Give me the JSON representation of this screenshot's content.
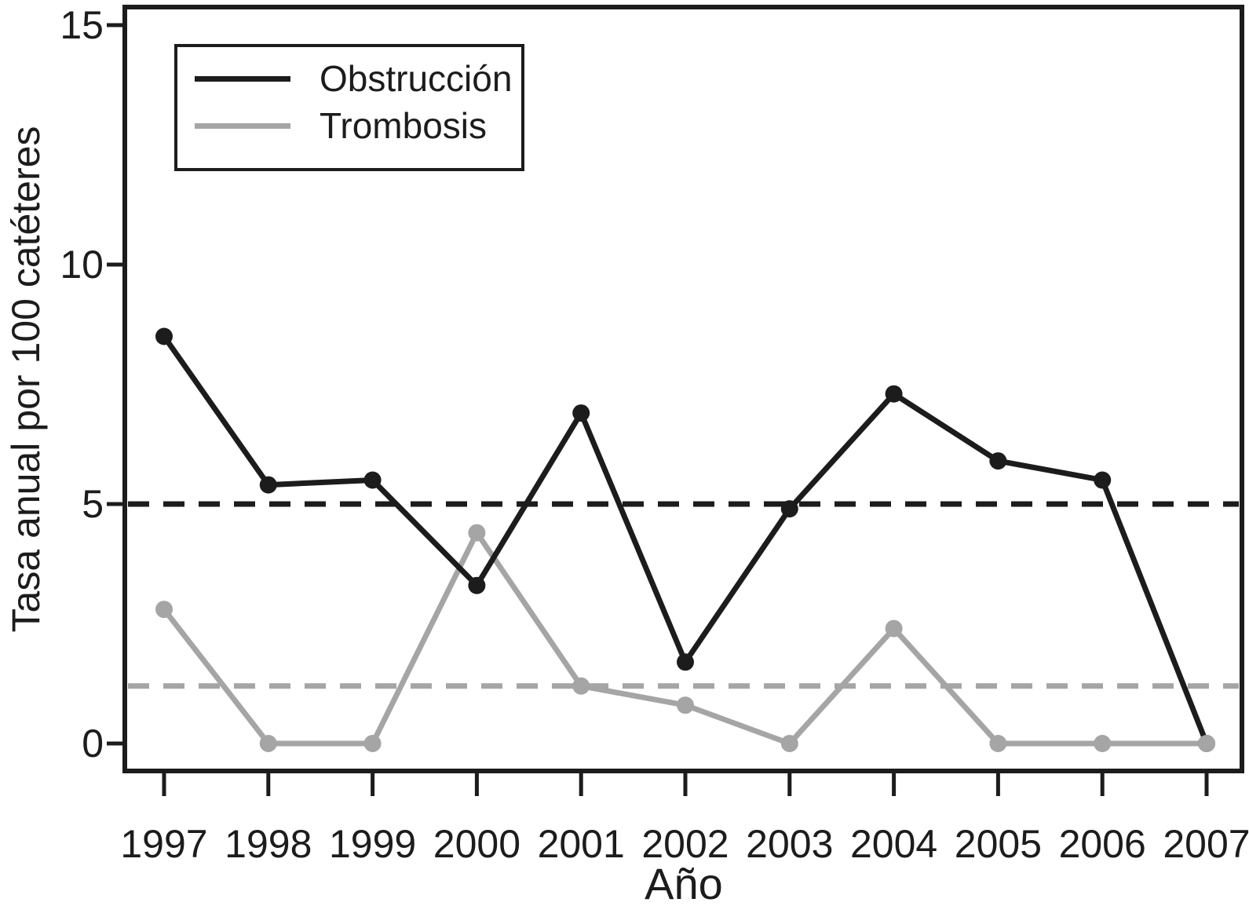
{
  "chart_data": {
    "type": "line",
    "title": "",
    "xlabel": "Año",
    "ylabel": "Tasa anual por 100 catéteres",
    "x_labels": [
      "1997",
      "1998",
      "1999",
      "2000",
      "2001",
      "2002",
      "2003",
      "2004",
      "2005",
      "2006",
      "2007"
    ],
    "yticks": [
      0,
      5,
      10,
      15
    ],
    "ylim": [
      -0.6,
      15.4
    ],
    "grid": false,
    "legend_position": "top-left",
    "series": [
      {
        "name": "Obstrucción",
        "color": "#1c1c1c",
        "values": [
          8.5,
          5.4,
          5.5,
          3.3,
          6.9,
          1.7,
          4.9,
          7.3,
          5.9,
          5.5,
          0
        ],
        "mean_dashed_line": 5.0
      },
      {
        "name": "Trombosis",
        "color": "#a5a5a5",
        "values": [
          2.8,
          0,
          0,
          4.4,
          1.2,
          0.8,
          0,
          2.4,
          0,
          0,
          0
        ],
        "mean_dashed_line": 1.2
      }
    ]
  },
  "legend": {
    "items": [
      {
        "label": "Obstrucción"
      },
      {
        "label": "Trombosis"
      }
    ]
  }
}
